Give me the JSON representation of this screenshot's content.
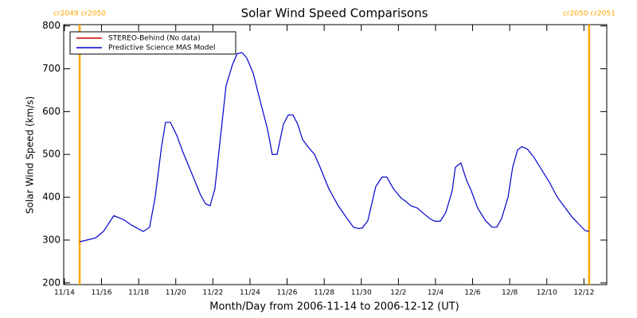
{
  "chart_data": {
    "type": "line",
    "title": "Solar Wind Speed Comparisons",
    "x_label": "Month/Day from 2006-11-14 to 2006-12-12 (UT)",
    "y_label": "Solar Wind Speed (km/s)",
    "xlim": [
      -0.04,
      29.23
    ],
    "xticks": [
      {
        "value": 0,
        "label": "11/14"
      },
      {
        "value": 2,
        "label": "11/16"
      },
      {
        "value": 4,
        "label": "11/18"
      },
      {
        "value": 6,
        "label": "11/20"
      },
      {
        "value": 8,
        "label": "11/22"
      },
      {
        "value": 10,
        "label": "11/24"
      },
      {
        "value": 12,
        "label": "11/26"
      },
      {
        "value": 14,
        "label": "11/28"
      },
      {
        "value": 16,
        "label": "11/30"
      },
      {
        "value": 18,
        "label": "12/2"
      },
      {
        "value": 20,
        "label": "12/4"
      },
      {
        "value": 22,
        "label": "12/6"
      },
      {
        "value": 24,
        "label": "12/8"
      },
      {
        "value": 26,
        "label": "12/10"
      },
      {
        "value": 28,
        "label": "12/12"
      }
    ],
    "ylim": [
      196,
      803
    ],
    "yticks": [
      200,
      300,
      400,
      500,
      600,
      700,
      800
    ],
    "legend_position": "upper left",
    "markers": [
      {
        "x": 0.82,
        "label": "cr2049 cr2050",
        "color": "#ffa500"
      },
      {
        "x": 28.28,
        "label": "cr2050 cr2051",
        "color": "#ffa500"
      }
    ],
    "x": [
      0.82,
      1.67,
      2.1,
      2.66,
      3.18,
      3.61,
      4.25,
      4.59,
      4.89,
      5.24,
      5.45,
      5.71,
      6.05,
      6.39,
      6.82,
      7.34,
      7.6,
      7.85,
      8.11,
      8.71,
      9.06,
      9.31,
      9.57,
      9.83,
      10.17,
      10.52,
      10.94,
      11.2,
      11.46,
      11.8,
      12.06,
      12.32,
      12.58,
      12.83,
      13.18,
      13.48,
      13.78,
      14.25,
      14.76,
      15.24,
      15.58,
      15.84,
      16.05,
      16.35,
      16.78,
      17.12,
      17.38,
      17.73,
      18.15,
      18.41,
      18.67,
      19.01,
      19.36,
      19.7,
      19.96,
      20.26,
      20.56,
      20.9,
      21.07,
      21.37,
      21.67,
      21.93,
      22.27,
      22.7,
      23.05,
      23.3,
      23.56,
      23.91,
      24.16,
      24.42,
      24.64,
      24.94,
      25.28,
      25.71,
      26.14,
      26.57,
      26.91,
      27.34,
      27.77,
      28.07,
      28.28
    ],
    "series": [
      {
        "name": "STEREO-Behind (No data)",
        "color": "#cc0000",
        "values": [
          null,
          null,
          null,
          null,
          null,
          null,
          null,
          null,
          null,
          null,
          null,
          null,
          null,
          null,
          null,
          null,
          null,
          null,
          null,
          null,
          null,
          null,
          null,
          null,
          null,
          null,
          null,
          null,
          null,
          null,
          null,
          null,
          null,
          null,
          null,
          null,
          null,
          null,
          null,
          null,
          null,
          null,
          null,
          null,
          null,
          null,
          null,
          null,
          null,
          null,
          null,
          null,
          null,
          null,
          null,
          null,
          null,
          null,
          null,
          null,
          null,
          null,
          null,
          null,
          null,
          null,
          null,
          null,
          null,
          null,
          null,
          null,
          null,
          null,
          null,
          null,
          null,
          null,
          null,
          null,
          null
        ]
      },
      {
        "name": "Predictive Science MAS Model",
        "color": "#0000cc",
        "values": [
          296,
          305,
          320,
          357,
          348,
          335,
          320,
          330,
          400,
          520,
          575,
          575,
          545,
          505,
          460,
          405,
          385,
          380,
          420,
          660,
          710,
          735,
          738,
          725,
          690,
          630,
          560,
          500,
          500,
          570,
          592,
          592,
          570,
          535,
          515,
          500,
          470,
          420,
          380,
          350,
          330,
          327,
          328,
          345,
          425,
          447,
          447,
          420,
          398,
          390,
          380,
          375,
          362,
          350,
          344,
          344,
          365,
          415,
          470,
          480,
          440,
          415,
          375,
          345,
          330,
          330,
          350,
          400,
          470,
          510,
          518,
          513,
          495,
          465,
          435,
          400,
          380,
          355,
          335,
          322,
          320
        ]
      }
    ]
  }
}
